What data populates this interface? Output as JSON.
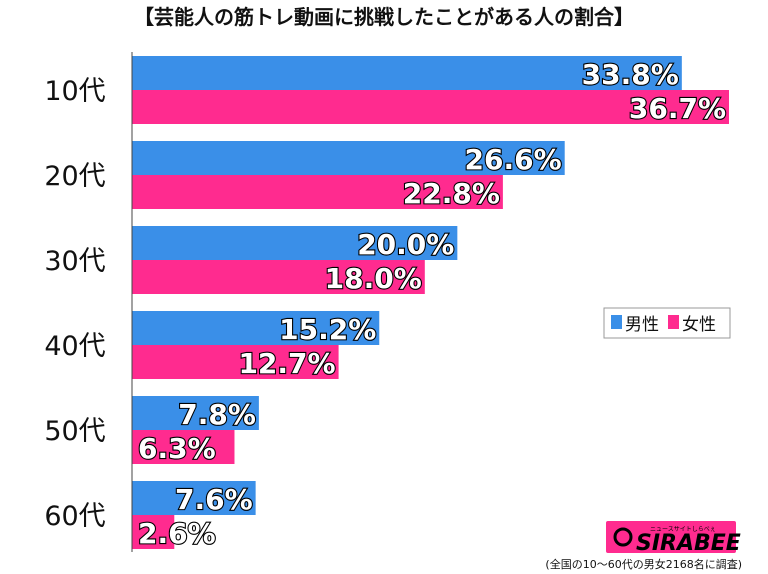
{
  "title": "【芸能人の筋トレ動画に挑戦したことがある人の割合】",
  "footnote": "(全国の10〜60代の男女2168名に調査)",
  "logo": {
    "name": "SIRABEE",
    "tagline": "ニュースサイトしらべぇ"
  },
  "colors": {
    "male": "#3a8fe8",
    "female": "#ff2b8f",
    "logo_bg": "#ff2b8f"
  },
  "chart_data": {
    "type": "bar",
    "orientation": "horizontal",
    "title": "【芸能人の筋トレ動画に挑戦したことがある人の割合】",
    "categories": [
      "10代",
      "20代",
      "30代",
      "40代",
      "50代",
      "60代"
    ],
    "series": [
      {
        "name": "男性",
        "values": [
          33.8,
          26.6,
          20.0,
          15.2,
          7.8,
          7.6
        ]
      },
      {
        "name": "女性",
        "values": [
          36.7,
          22.8,
          18.0,
          12.7,
          6.3,
          2.6
        ]
      }
    ],
    "value_format": "%",
    "xlim": [
      0,
      36.7
    ],
    "grid": false,
    "legend_placement": "right"
  }
}
